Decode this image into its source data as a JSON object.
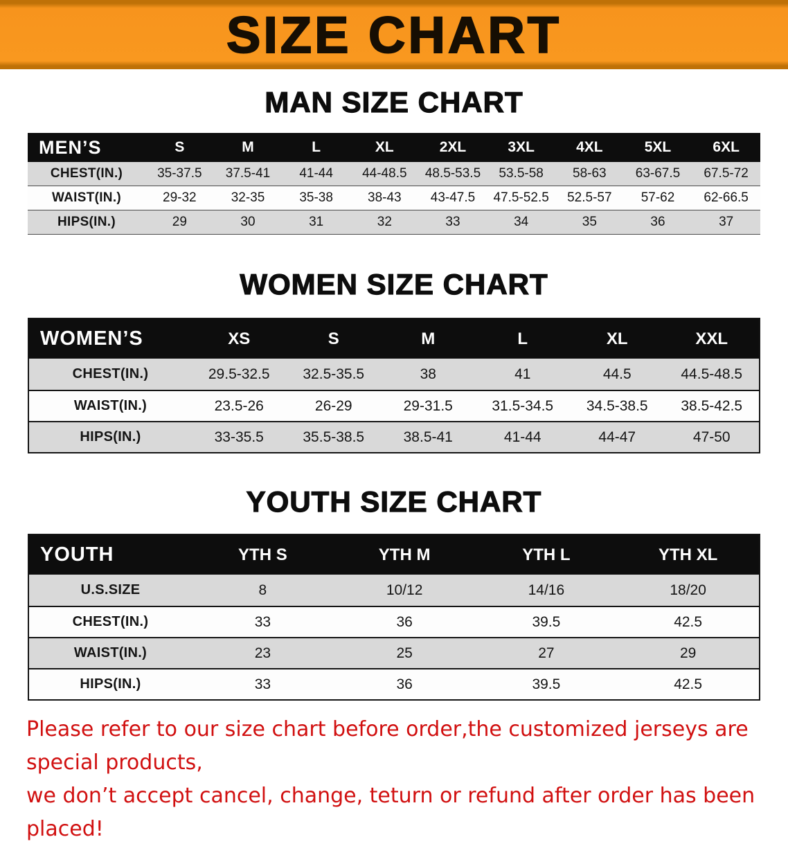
{
  "banner": {
    "title": "SIZE CHART"
  },
  "man": {
    "heading": "MAN SIZE CHART",
    "label": "MEN’S",
    "columns": [
      "S",
      "M",
      "L",
      "XL",
      "2XL",
      "3XL",
      "4XL",
      "5XL",
      "6XL"
    ],
    "rows": [
      {
        "label": "CHEST(IN.)",
        "values": [
          "35-37.5",
          "37.5-41",
          "41-44",
          "44-48.5",
          "48.5-53.5",
          "53.5-58",
          "58-63",
          "63-67.5",
          "67.5-72"
        ]
      },
      {
        "label": "WAIST(IN.)",
        "values": [
          "29-32",
          "32-35",
          "35-38",
          "38-43",
          "43-47.5",
          "47.5-52.5",
          "52.5-57",
          "57-62",
          "62-66.5"
        ]
      },
      {
        "label": "HIPS(IN.)",
        "values": [
          "29",
          "30",
          "31",
          "32",
          "33",
          "34",
          "35",
          "36",
          "37"
        ]
      }
    ]
  },
  "women": {
    "heading": "WOMEN SIZE CHART",
    "label": "WOMEN’S",
    "columns": [
      "XS",
      "S",
      "M",
      "L",
      "XL",
      "XXL"
    ],
    "rows": [
      {
        "label": "CHEST(IN.)",
        "values": [
          "29.5-32.5",
          "32.5-35.5",
          "38",
          "41",
          "44.5",
          "44.5-48.5"
        ]
      },
      {
        "label": "WAIST(IN.)",
        "values": [
          "23.5-26",
          "26-29",
          "29-31.5",
          "31.5-34.5",
          "34.5-38.5",
          "38.5-42.5"
        ]
      },
      {
        "label": "HIPS(IN.)",
        "values": [
          "33-35.5",
          "35.5-38.5",
          "38.5-41",
          "41-44",
          "44-47",
          "47-50"
        ]
      }
    ]
  },
  "youth": {
    "heading": "YOUTH SIZE CHART",
    "label": "YOUTH",
    "columns": [
      "YTH S",
      "YTH M",
      "YTH L",
      "YTH XL"
    ],
    "rows": [
      {
        "label": "U.S.SIZE",
        "values": [
          "8",
          "10/12",
          "14/16",
          "18/20"
        ]
      },
      {
        "label": "CHEST(IN.)",
        "values": [
          "33",
          "36",
          "39.5",
          "42.5"
        ]
      },
      {
        "label": "WAIST(IN.)",
        "values": [
          "23",
          "25",
          "27",
          "29"
        ]
      },
      {
        "label": "HIPS(IN.)",
        "values": [
          "33",
          "36",
          "39.5",
          "42.5"
        ]
      }
    ]
  },
  "footer": {
    "line1": "Please refer to our size chart before order,the customized jerseys are special products,",
    "line2": "we don’t accept cancel, change, teturn or refund after order has been placed!"
  },
  "colors": {
    "banner_orange": "#f7941d",
    "header_black": "#0d0d0d",
    "row_gray": "#d9d9d9",
    "footer_red": "#d11010"
  }
}
